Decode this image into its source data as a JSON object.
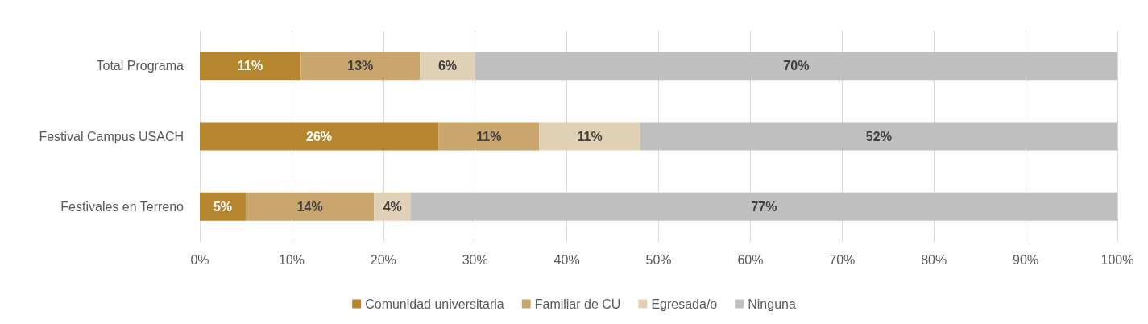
{
  "chart_data": {
    "type": "bar",
    "orientation": "horizontal",
    "stacked": true,
    "categories": [
      "Total Programa",
      "Festival Campus USACH",
      "Festivales en Terreno"
    ],
    "series": [
      {
        "name": "Comunidad universitaria",
        "color": "#b5862f",
        "values": [
          11,
          26,
          5
        ],
        "value_labels": [
          "11%",
          "26%",
          "5%"
        ]
      },
      {
        "name": "Familiar de CU",
        "color": "#c8a66e",
        "values": [
          13,
          11,
          14
        ],
        "value_labels": [
          "13%",
          "11%",
          "14%"
        ]
      },
      {
        "name": "Egresada/o",
        "color": "#e0d0b5",
        "values": [
          6,
          11,
          4
        ],
        "value_labels": [
          "6%",
          "11%",
          "4%"
        ]
      },
      {
        "name": "Ninguna",
        "color": "#bfbfbf",
        "values": [
          70,
          52,
          77
        ],
        "value_labels": [
          "70%",
          "52%",
          "77%"
        ]
      }
    ],
    "xlim": [
      0,
      100
    ],
    "xticks": [
      {
        "value": 0,
        "label": "0%"
      },
      {
        "value": 10,
        "label": "10%"
      },
      {
        "value": 20,
        "label": "20%"
      },
      {
        "value": 30,
        "label": "30%"
      },
      {
        "value": 40,
        "label": "40%"
      },
      {
        "value": 50,
        "label": "50%"
      },
      {
        "value": 60,
        "label": "60%"
      },
      {
        "value": 70,
        "label": "70%"
      },
      {
        "value": 80,
        "label": "80%"
      },
      {
        "value": 90,
        "label": "90%"
      },
      {
        "value": 100,
        "label": "100%"
      }
    ],
    "grid": "x",
    "legend": "bottom"
  }
}
